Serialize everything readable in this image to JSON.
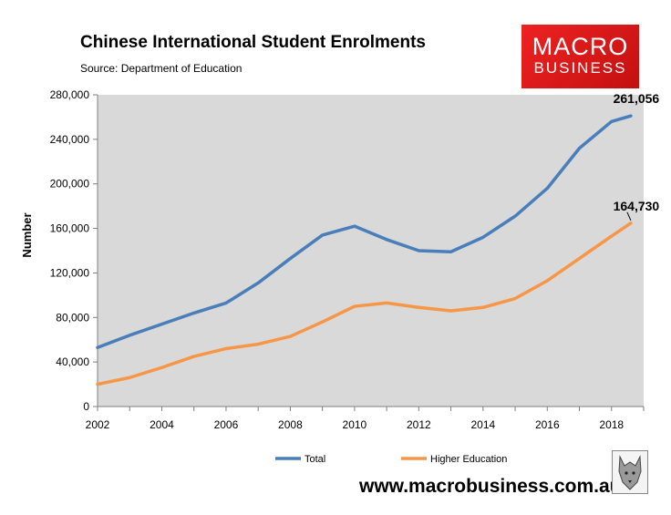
{
  "header": {
    "title": "Chinese International Student Enrolments",
    "source": "Source: Department of Education"
  },
  "logo": {
    "line1": "MACRO",
    "line2": "BUSINESS",
    "color": "#e01b1b"
  },
  "footer": {
    "url": "www.macrobusiness.com.au"
  },
  "chart_data": {
    "type": "line",
    "title": "Chinese International Student Enrolments",
    "xlabel": "",
    "ylabel": "Number",
    "xlim": [
      2002,
      2019
    ],
    "ylim": [
      0,
      280000
    ],
    "x_ticks": [
      "2002",
      "2004",
      "2006",
      "2008",
      "2010",
      "2012",
      "2014",
      "2016",
      "2018"
    ],
    "y_ticks": [
      "0",
      "40,000",
      "80,000",
      "120,000",
      "160,000",
      "200,000",
      "240,000",
      "280,000"
    ],
    "grid": false,
    "legend": "bottom",
    "x": [
      2002,
      2003,
      2004,
      2005,
      2006,
      2007,
      2008,
      2009,
      2010,
      2011,
      2012,
      2013,
      2014,
      2015,
      2016,
      2017,
      2018,
      2018.6
    ],
    "series": [
      {
        "name": "Total",
        "color": "#4a7ebb",
        "values": [
          53000,
          64000,
          74000,
          84000,
          93000,
          111000,
          133000,
          154000,
          162000,
          150000,
          140000,
          139000,
          152000,
          171000,
          196000,
          232000,
          256000,
          261056
        ],
        "end_label": "261,056"
      },
      {
        "name": "Higher Education",
        "color": "#f79646",
        "values": [
          20000,
          26000,
          35000,
          45000,
          52000,
          56000,
          63000,
          76000,
          90000,
          93000,
          89000,
          86000,
          89000,
          97000,
          113000,
          133000,
          153000,
          164730
        ],
        "end_label": "164,730"
      }
    ]
  }
}
